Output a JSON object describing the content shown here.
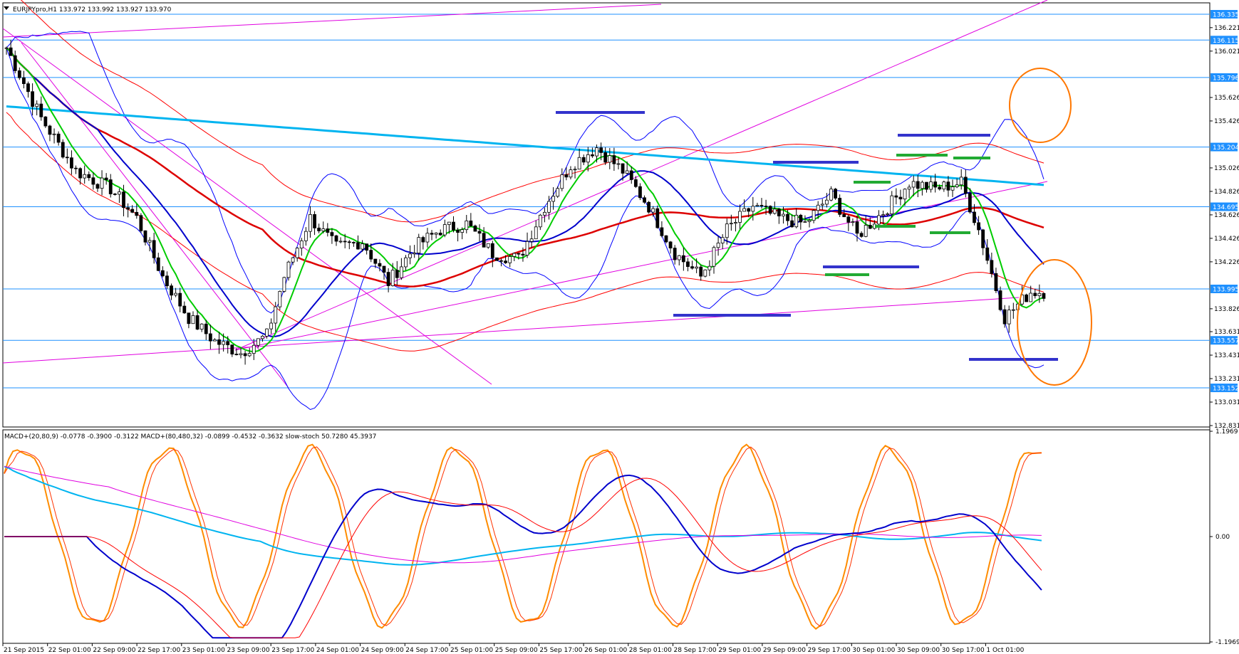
{
  "header": {
    "main": "EURJPYpro,H1  133.972 133.992 133.927 133.970",
    "sub": "MACD+(20,80,9) -0.0778 -0.3900 -0.3122   MACD+(80,480,32) -0.0899 -0.4532 -0.3632   slow-stoch 50.7280 45.3937"
  },
  "colors": {
    "bull_candle": "#ffffff",
    "bear_candle": "#000000",
    "hline": "#1e90ff",
    "badge": "#1e90ff",
    "bollinger": "#0000ff",
    "envelope": "#ff0000",
    "ema_fast": "#00cc00",
    "ema_mid": "#0000cc",
    "ema_slow": "#dd0000",
    "sma_long": "#00b4f0",
    "trendline": "#e000e0",
    "annotation": "#ff7700",
    "level_blue": "#3333cc",
    "level_green": "#22aa33",
    "macd_fast": "#0000cc",
    "macd_fast_signal": "#ff0000",
    "macd_slow": "#00b4f0",
    "macd_slow_signal": "#e000e0",
    "stoch_main": "#ff8c00",
    "stoch_signal": "#ff3300"
  },
  "chart_data": {
    "type": "candlestick",
    "symbol": "EURJPYpro",
    "timeframe": "H1",
    "ylim": [
      132.831,
      136.42
    ],
    "price_ticks": [
      "136.221",
      "136.021",
      "135.626",
      "135.426",
      "135.026",
      "134.826",
      "134.626",
      "134.426",
      "134.226",
      "133.826",
      "133.631",
      "133.431",
      "133.231",
      "133.031",
      "132.831"
    ],
    "horizontal_levels": [
      {
        "price": 136.335,
        "label": "136.335"
      },
      {
        "price": 136.115,
        "label": "136.115"
      },
      {
        "price": 135.796,
        "label": "135.796"
      },
      {
        "price": 135.204,
        "label": "135.204"
      },
      {
        "price": 134.695,
        "label": "134.695"
      },
      {
        "price": 133.995,
        "label": "133.995"
      },
      {
        "price": 133.557,
        "label": "133.557"
      },
      {
        "price": 133.152,
        "label": "133.152"
      }
    ],
    "x_labels": [
      "21 Sep 2015",
      "22 Sep 01:00",
      "22 Sep 09:00",
      "22 Sep 17:00",
      "23 Sep 01:00",
      "23 Sep 09:00",
      "23 Sep 17:00",
      "24 Sep 01:00",
      "24 Sep 09:00",
      "24 Sep 17:00",
      "25 Sep 01:00",
      "25 Sep 09:00",
      "25 Sep 17:00",
      "26 Sep 01:00",
      "28 Sep 01:00",
      "28 Sep 17:00",
      "29 Sep 01:00",
      "29 Sep 09:00",
      "29 Sep 17:00",
      "30 Sep 01:00",
      "30 Sep 09:00",
      "30 Sep 17:00",
      "1 Oct 01:00"
    ],
    "close_path": [
      [
        0,
        136.05
      ],
      [
        8,
        135.45
      ],
      [
        16,
        135.0
      ],
      [
        24,
        134.85
      ],
      [
        30,
        134.6
      ],
      [
        36,
        134.1
      ],
      [
        42,
        133.75
      ],
      [
        48,
        133.55
      ],
      [
        54,
        133.45
      ],
      [
        60,
        133.6
      ],
      [
        64,
        134.1
      ],
      [
        70,
        134.6
      ],
      [
        76,
        134.35
      ],
      [
        82,
        134.4
      ],
      [
        88,
        134.05
      ],
      [
        94,
        134.35
      ],
      [
        100,
        134.5
      ],
      [
        106,
        134.55
      ],
      [
        112,
        134.3
      ],
      [
        118,
        134.25
      ],
      [
        124,
        134.7
      ],
      [
        130,
        135.05
      ],
      [
        136,
        135.2
      ],
      [
        142,
        135.0
      ],
      [
        148,
        134.7
      ],
      [
        154,
        134.3
      ],
      [
        160,
        134.1
      ],
      [
        166,
        134.5
      ],
      [
        172,
        134.7
      ],
      [
        178,
        134.6
      ],
      [
        184,
        134.55
      ],
      [
        190,
        134.8
      ],
      [
        196,
        134.45
      ],
      [
        202,
        134.65
      ],
      [
        208,
        134.9
      ],
      [
        214,
        134.85
      ],
      [
        220,
        134.9
      ],
      [
        224,
        134.5
      ],
      [
        230,
        133.75
      ],
      [
        236,
        133.97
      ]
    ],
    "indicator_ticks": [
      "1.1969",
      "0.00",
      "-1.1969"
    ],
    "indicator_ylim": [
      -1.1969,
      1.1969
    ]
  }
}
